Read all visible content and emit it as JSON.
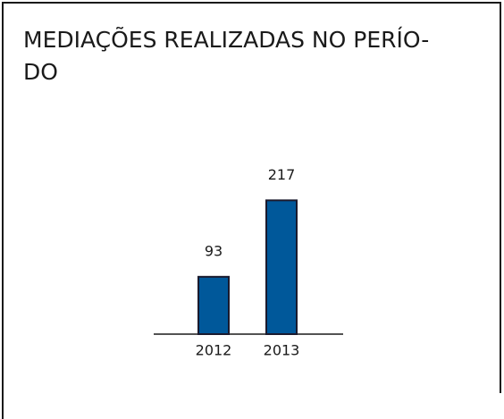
{
  "chart_data": {
    "type": "bar",
    "title": [
      "MEDIAÇÕES REALIZADAS NO PERÍO-",
      "DO"
    ],
    "categories": [
      "2012",
      "2013"
    ],
    "values": [
      93,
      217
    ],
    "color": "#00589a"
  }
}
